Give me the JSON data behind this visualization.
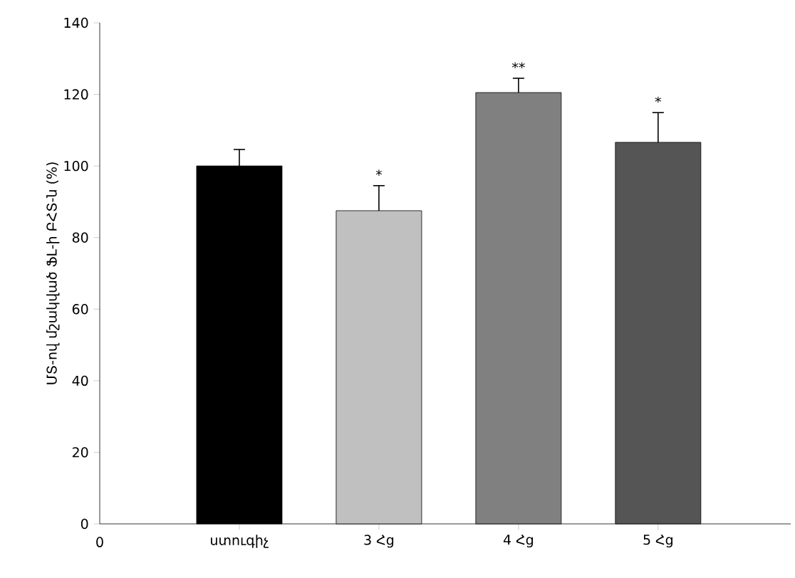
{
  "chart_data": {
    "type": "bar",
    "ylabel": "ՄՏ-ով մշակված ՖԼ-ի ԲՀՏ-ն (%)",
    "categories": [
      "ստուգիչ",
      "3 Հց",
      "4 Հց",
      "5 Հց"
    ],
    "values": [
      100,
      87.5,
      120.5,
      106.6
    ],
    "errors": [
      4.6,
      7,
      4,
      8.3
    ],
    "colors": [
      "#000000",
      "#c0c0c0",
      "#808080",
      "#555555"
    ],
    "ylim": [
      0,
      140
    ],
    "yticks": [
      0,
      20,
      40,
      60,
      80,
      100,
      120,
      140
    ],
    "grid": false,
    "annotations": [
      "0",
      "*",
      "**",
      "*"
    ]
  }
}
